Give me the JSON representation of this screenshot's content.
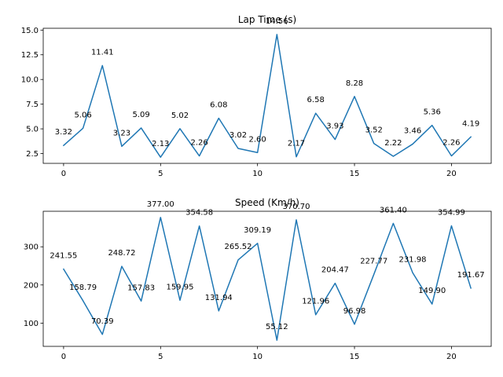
{
  "chart_data": [
    {
      "type": "line",
      "title": "Lap Time (s)",
      "xlabel": "",
      "ylabel": "",
      "x": [
        0,
        1,
        2,
        3,
        4,
        5,
        6,
        7,
        8,
        9,
        10,
        11,
        12,
        13,
        14,
        15,
        16,
        17,
        18,
        19,
        20,
        21
      ],
      "series": [
        {
          "values": [
            3.32,
            5.06,
            11.41,
            3.23,
            5.09,
            2.13,
            5.02,
            2.26,
            6.08,
            3.02,
            2.6,
            14.56,
            2.17,
            6.58,
            3.93,
            8.28,
            3.52,
            2.22,
            3.46,
            5.36,
            2.26,
            4.19
          ],
          "labels": [
            "3.32",
            "5.06",
            "11.41",
            "3.23",
            "5.09",
            "2.13",
            "5.02",
            "2.26",
            "6.08",
            "3.02",
            "2.60",
            "14.56",
            "2.17",
            "6.58",
            "3.93",
            "8.28",
            "3.52",
            "2.22",
            "3.46",
            "5.36",
            "2.26",
            "4.19"
          ],
          "color": "#1f77b4"
        }
      ],
      "xlim": [
        -1.05,
        22.05
      ],
      "ylim": [
        1.507,
        15.183
      ],
      "xticks": [
        0,
        5,
        10,
        15,
        20
      ],
      "xtick_labels": [
        "0",
        "5",
        "10",
        "15",
        "20"
      ],
      "yticks": [
        2.5,
        5.0,
        7.5,
        10.0,
        12.5,
        15.0
      ],
      "ytick_labels": [
        "2.5",
        "5.0",
        "7.5",
        "10.0",
        "12.5",
        "15.0"
      ],
      "grid": false,
      "legend": false
    },
    {
      "type": "line",
      "title": "Speed (Km/h)",
      "xlabel": "",
      "ylabel": "",
      "x": [
        0,
        1,
        2,
        3,
        4,
        5,
        6,
        7,
        8,
        9,
        10,
        11,
        12,
        13,
        14,
        15,
        16,
        17,
        18,
        19,
        20,
        21
      ],
      "series": [
        {
          "values": [
            241.55,
            158.79,
            70.39,
            248.72,
            157.83,
            377.0,
            159.95,
            354.58,
            131.94,
            265.52,
            309.19,
            55.12,
            370.7,
            121.96,
            204.47,
            96.98,
            227.77,
            361.4,
            231.98,
            149.9,
            354.99,
            191.67
          ],
          "labels": [
            "241.55",
            "158.79",
            "70.39",
            "248.72",
            "157.83",
            "377.00",
            "159.95",
            "354.58",
            "131.94",
            "265.52",
            "309.19",
            "55.12",
            "370.70",
            "121.96",
            "204.47",
            "96.98",
            "227.77",
            "361.40",
            "231.98",
            "149.90",
            "354.99",
            "191.67"
          ],
          "color": "#1f77b4"
        }
      ],
      "xlim": [
        -1.05,
        22.05
      ],
      "ylim": [
        39.03,
        393.09
      ],
      "xticks": [
        0,
        5,
        10,
        15,
        20
      ],
      "xtick_labels": [
        "0",
        "5",
        "10",
        "15",
        "20"
      ],
      "yticks": [
        100,
        200,
        300
      ],
      "ytick_labels": [
        "100",
        "200",
        "300"
      ],
      "grid": false,
      "legend": false
    }
  ]
}
